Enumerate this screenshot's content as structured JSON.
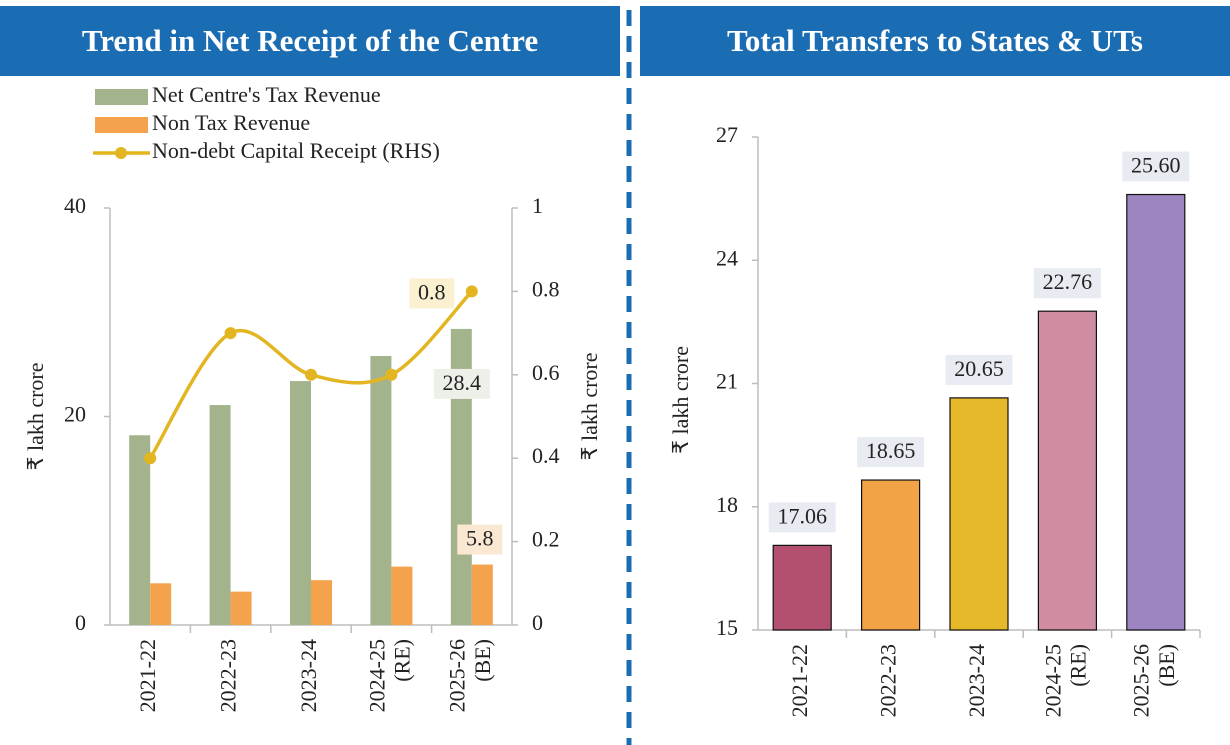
{
  "chart_data": [
    {
      "type": "combo",
      "title": "Trend in Net Receipt of the Centre",
      "categories": [
        "2021-22",
        "2022-23",
        "2023-24",
        "2024-25 (RE)",
        "2025-26 (BE)"
      ],
      "series": [
        {
          "name": "Net Centre's Tax Revenue",
          "color": "#a3b48c",
          "values": [
            18.2,
            21.1,
            23.4,
            25.8,
            28.4
          ]
        },
        {
          "name": "Non Tax Revenue",
          "color": "#f5a24c",
          "values": [
            4.0,
            3.2,
            4.3,
            5.6,
            5.8
          ]
        },
        {
          "name": "Non-debt Capital Receipt (RHS)",
          "color": "#e3b521",
          "values": [
            0.4,
            0.7,
            0.6,
            0.6,
            0.8
          ],
          "axis": "y2"
        }
      ],
      "ylim": [
        0,
        40
      ],
      "yticks": [
        0,
        20,
        40
      ],
      "y2lim": [
        0,
        1
      ],
      "y2ticks": [
        0,
        0.2,
        0.4,
        0.6,
        0.8,
        1
      ],
      "ylabel": "₹ lakh crore",
      "y2label": "₹ lakh crore"
    },
    {
      "type": "bar",
      "title": "Total Transfers to States & UTs",
      "categories": [
        "2021-22",
        "2022-23",
        "2023-24",
        "2024-25 (RE)",
        "2025-26 (BE)"
      ],
      "values": [
        17.06,
        18.65,
        20.65,
        22.76,
        25.6
      ],
      "value_labels": [
        "17.06",
        "18.65",
        "20.65",
        "22.76",
        "25.60"
      ],
      "colors": [
        "#b3506f",
        "#f2a346",
        "#e5b929",
        "#d08da1",
        "#9c85c0"
      ],
      "ylim": [
        15,
        27
      ],
      "yticks": [
        15,
        18,
        21,
        24,
        27
      ],
      "ylabel": "₹ lakh crore"
    }
  ]
}
